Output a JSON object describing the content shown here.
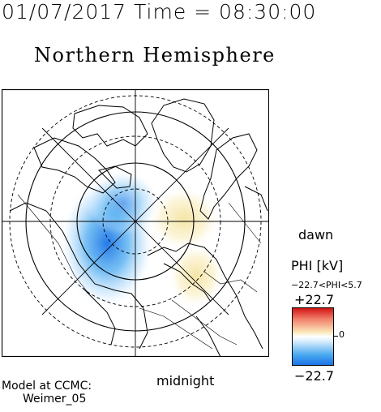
{
  "header": {
    "timestamp": "01/07/2017 Time = 08:30:00",
    "title": "Northern Hemisphere"
  },
  "map": {
    "projection": "polar stereographic, north pole centered",
    "orientation": {
      "bottom": "midnight",
      "right": "dawn"
    },
    "label_dawn": "dawn",
    "label_midnight": "midnight",
    "features": [
      "coastlines",
      "country-borders",
      "latitude-circles",
      "meridian-lines"
    ],
    "potential_cells": [
      {
        "sign": "negative",
        "color": "#1a73e8",
        "location": "dusk/evening side"
      },
      {
        "sign": "positive",
        "color": "#f6e7a8",
        "location": "dawn/morning side"
      }
    ]
  },
  "legend": {
    "title": "PHI [kV]",
    "range_text": "−22.7<PHI<5.7",
    "max_label": "+22.7",
    "zero_label": "0",
    "min_label": "−22.7",
    "colors": {
      "max": "#d11414",
      "zero": "#ffffff",
      "min": "#1a73e8"
    }
  },
  "credits": {
    "line1": "Model at CCMC:",
    "line2": "Weimer_05"
  }
}
